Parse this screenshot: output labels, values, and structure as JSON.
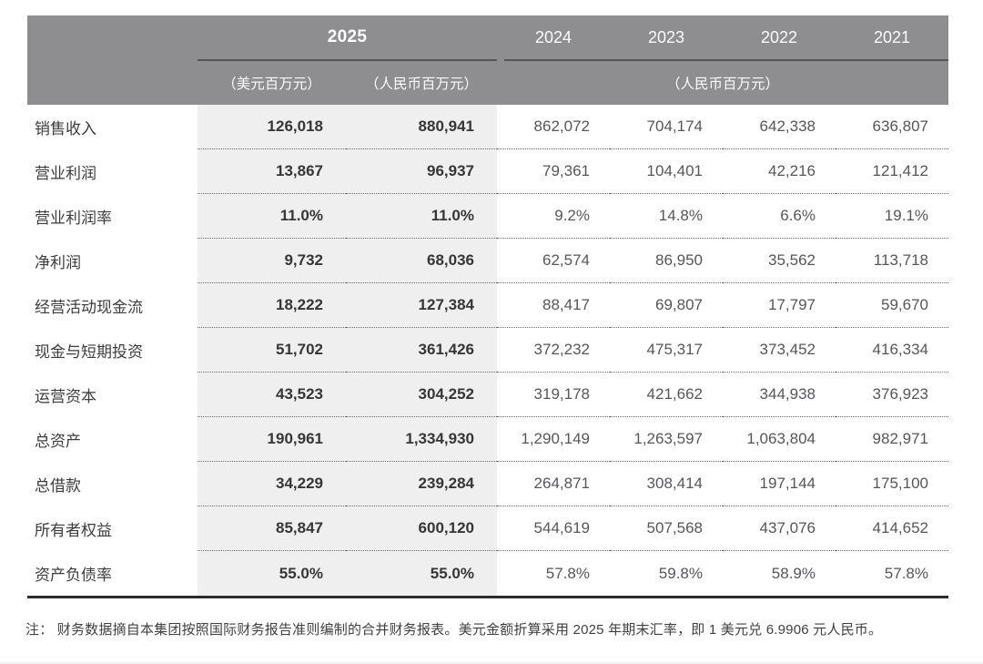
{
  "table": {
    "header": {
      "year_group": "2025",
      "years": [
        "2024",
        "2023",
        "2022",
        "2021"
      ],
      "sub_usd": "（美元百万元）",
      "sub_rmb": "（人民币百万元）",
      "sub_rmb_group": "（人民币百万元）"
    },
    "rows": [
      {
        "label": "销售收入",
        "values": [
          "126,018",
          "880,941",
          "862,072",
          "704,174",
          "642,338",
          "636,807"
        ]
      },
      {
        "label": "营业利润",
        "values": [
          "13,867",
          "96,937",
          "79,361",
          "104,401",
          "42,216",
          "121,412"
        ]
      },
      {
        "label": "营业利润率",
        "values": [
          "11.0%",
          "11.0%",
          "9.2%",
          "14.8%",
          "6.6%",
          "19.1%"
        ]
      },
      {
        "label": "净利润",
        "values": [
          "9,732",
          "68,036",
          "62,574",
          "86,950",
          "35,562",
          "113,718"
        ]
      },
      {
        "label": "经营活动现金流",
        "values": [
          "18,222",
          "127,384",
          "88,417",
          "69,807",
          "17,797",
          "59,670"
        ]
      },
      {
        "label": "现金与短期投资",
        "values": [
          "51,702",
          "361,426",
          "372,232",
          "475,317",
          "373,452",
          "416,334"
        ]
      },
      {
        "label": "运营资本",
        "values": [
          "43,523",
          "304,252",
          "319,178",
          "421,662",
          "344,938",
          "376,923"
        ]
      },
      {
        "label": "总资产",
        "values": [
          "190,961",
          "1,334,930",
          "1,290,149",
          "1,263,597",
          "1,063,804",
          "982,971"
        ]
      },
      {
        "label": "总借款",
        "values": [
          "34,229",
          "239,284",
          "264,871",
          "308,414",
          "197,144",
          "175,100"
        ]
      },
      {
        "label": "所有者权益",
        "values": [
          "85,847",
          "600,120",
          "544,619",
          "507,568",
          "437,076",
          "414,652"
        ]
      },
      {
        "label": "资产负债率",
        "values": [
          "55.0%",
          "55.0%",
          "57.8%",
          "59.8%",
          "58.9%",
          "57.8%"
        ]
      }
    ]
  },
  "note": "注： 财务数据摘自本集团按照国际财务报告准则编制的合并财务报表。美元金额折算采用 2025 年期末汇率，即 1 美元兑 6.9906 元人民币。",
  "colors": {
    "header_bg": "#8e8e90",
    "header_rule": "#555557",
    "band_2025_bg": "#efefef",
    "bottom_rule": "#2b2b2d"
  }
}
